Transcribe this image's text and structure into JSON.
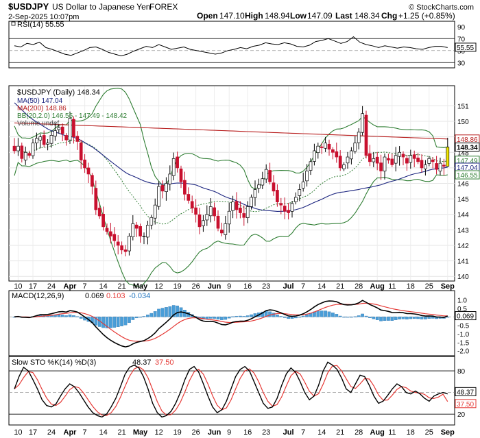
{
  "header": {
    "symbol": "$USDJPY",
    "name": "US Dollar to Japanese Yen",
    "exchange": "FOREX",
    "timestamp": "2-Sep-2025 10:07pm",
    "copyright": "© StockCharts.com",
    "open_label": "Open",
    "open": "147.10",
    "high_label": "High",
    "high": "148.94",
    "low_label": "Low",
    "low": "147.09",
    "last_label": "Last",
    "last": "148.34",
    "chg_label": "Chg",
    "chg": "+1.25 (+0.85%)"
  },
  "colors": {
    "up": "#ffffff",
    "down": "#c8102e",
    "bb": "#2e7d32",
    "ma50": "#1a237e",
    "ma200": "#b71c1c",
    "hist": "#4a9ed8",
    "macd_line": "#000000",
    "signal_line": "#e53935",
    "last_bar": "#f2e600"
  },
  "chart_data": [
    {
      "panel": "rsi",
      "type": "line",
      "legend": "RSI(14) 55.55",
      "ylim": [
        20,
        100
      ],
      "ticks": [
        90,
        70,
        50,
        30
      ],
      "reference_lines": [
        70,
        30
      ],
      "last_value": "55.55",
      "values": [
        58,
        56,
        62,
        60,
        64,
        55,
        52,
        48,
        44,
        42,
        46,
        50,
        55,
        56,
        52,
        47,
        44,
        41,
        44,
        49,
        53,
        57,
        55,
        60,
        56,
        52,
        54,
        56,
        52,
        50,
        48,
        46,
        44,
        46,
        50,
        52,
        55,
        53,
        57,
        59,
        63,
        61,
        60,
        63,
        61,
        57,
        56,
        59,
        65,
        67,
        70,
        66,
        62,
        65,
        73,
        64,
        60,
        58,
        55,
        58,
        56,
        54,
        56,
        55,
        53,
        52,
        55,
        57,
        57,
        55
      ]
    },
    {
      "panel": "price",
      "type": "candlestick",
      "legend": [
        "$USDJPY (Daily) 148.34",
        "MA(50) 147.04",
        "MA(200) 148.86",
        "BB(20,2.0) 146.55 - 147.49 - 148.42",
        "Volume undef"
      ],
      "ylim": [
        139.7,
        152.3
      ],
      "ticks": [
        151,
        150,
        149,
        148,
        147,
        146,
        145,
        144,
        143,
        142,
        141,
        140
      ],
      "x_labels": [
        {
          "i": 1,
          "t": "10"
        },
        {
          "i": 5,
          "t": "17"
        },
        {
          "i": 10,
          "t": "24"
        },
        {
          "i": 15,
          "t": "Apr"
        },
        {
          "i": 19,
          "t": "7"
        },
        {
          "i": 24,
          "t": "14"
        },
        {
          "i": 29,
          "t": "21"
        },
        {
          "i": 34,
          "t": "May"
        },
        {
          "i": 39,
          "t": "12"
        },
        {
          "i": 44,
          "t": "19"
        },
        {
          "i": 49,
          "t": "26"
        },
        {
          "i": 54,
          "t": "Jun"
        },
        {
          "i": 58,
          "t": "9"
        },
        {
          "i": 63,
          "t": "16"
        },
        {
          "i": 68,
          "t": "23"
        },
        {
          "i": 74,
          "t": "Jul"
        },
        {
          "i": 78,
          "t": "7"
        },
        {
          "i": 83,
          "t": "14"
        },
        {
          "i": 88,
          "t": "21"
        },
        {
          "i": 93,
          "t": "28"
        },
        {
          "i": 98,
          "t": "Aug"
        },
        {
          "i": 102,
          "t": "11"
        },
        {
          "i": 107,
          "t": "18"
        },
        {
          "i": 112,
          "t": "25"
        },
        {
          "i": 117,
          "t": "Sep"
        }
      ],
      "price_labels": [
        {
          "v": 148.86,
          "text": "148.86",
          "color": "#b71c1c"
        },
        {
          "v": 148.34,
          "text": "148.34",
          "color": "#000000",
          "bold": true
        },
        {
          "v": 147.49,
          "text": "147.49",
          "color": "#2e7d32"
        },
        {
          "v": 147.04,
          "text": "147.04",
          "color": "#1a237e"
        },
        {
          "v": 146.55,
          "text": "146.55",
          "color": "#2e7d32"
        }
      ],
      "closes": [
        148.1,
        148.4,
        147.6,
        148.0,
        147.8,
        148.6,
        148.9,
        149.0,
        148.5,
        148.6,
        149.1,
        149.4,
        149.6,
        149.2,
        148.8,
        150.2,
        149.0,
        148.7,
        147.5,
        147.0,
        146.6,
        145.8,
        144.3,
        143.9,
        143.2,
        142.9,
        142.6,
        142.3,
        142.0,
        141.7,
        141.6,
        142.6,
        143.4,
        143.1,
        142.6,
        142.6,
        143.3,
        143.8,
        144.6,
        145.8,
        145.5,
        146.0,
        146.6,
        147.6,
        147.0,
        146.1,
        145.3,
        144.9,
        144.4,
        144.0,
        143.2,
        143.6,
        144.0,
        144.5,
        143.9,
        143.1,
        142.8,
        143.4,
        144.2,
        144.8,
        144.3,
        144.1,
        143.8,
        144.5,
        145.1,
        145.6,
        145.9,
        146.3,
        146.9,
        146.1,
        145.5,
        144.8,
        144.6,
        144.2,
        144.1,
        144.7,
        145.1,
        145.6,
        146.1,
        146.8,
        147.4,
        148.1,
        148.4,
        148.3,
        148.6,
        148.2,
        148.0,
        147.7,
        147.0,
        147.2,
        147.7,
        148.1,
        148.6,
        149.3,
        150.5,
        147.8,
        147.4,
        147.6,
        147.3,
        146.8,
        147.7,
        147.5,
        147.2,
        147.8,
        148.0,
        147.7,
        147.3,
        147.8,
        147.6,
        147.4,
        147.0,
        147.2,
        147.6,
        147.4,
        146.9,
        147.3,
        147.1,
        148.34
      ]
    },
    {
      "panel": "macd",
      "type": "line+histogram",
      "legend": {
        "main": "MACD(12,26,9)",
        "macd": "0.069",
        "signal": "0.103",
        "hist": "-0.034"
      },
      "ylim": [
        -2.3,
        1.55
      ],
      "ticks": [
        1.0,
        0.5,
        0.0,
        -0.5,
        -1.0,
        -1.5,
        -2.0
      ],
      "macd_last": "0.069"
    },
    {
      "panel": "stochastic",
      "type": "line",
      "legend": {
        "main": "Slow STO %K(14) %D(3)",
        "k": "48.37",
        "d": "37.50"
      },
      "ylim": [
        5,
        100
      ],
      "ticks": [
        80,
        20
      ],
      "k_last": "48.37",
      "d_last": "37.50",
      "k_values": [
        55,
        72,
        85,
        80,
        68,
        55,
        40,
        32,
        30,
        34,
        45,
        55,
        62,
        58,
        50,
        40,
        30,
        22,
        18,
        16,
        20,
        30,
        42,
        58,
        75,
        85,
        88,
        84,
        72,
        55,
        35,
        22,
        16,
        18,
        24,
        35,
        50,
        68,
        82,
        86,
        78,
        62,
        45,
        30,
        22,
        26,
        38,
        55,
        72,
        82,
        86,
        80,
        65,
        50,
        35,
        28,
        30,
        42,
        60,
        76,
        84,
        78,
        65,
        50,
        40,
        45,
        60,
        80,
        92,
        88,
        82,
        70,
        55,
        50,
        62,
        74,
        72,
        60,
        45,
        35,
        38,
        46,
        55,
        62,
        58,
        50,
        48,
        52,
        48,
        42,
        38,
        45,
        48,
        50,
        48
      ]
    }
  ]
}
